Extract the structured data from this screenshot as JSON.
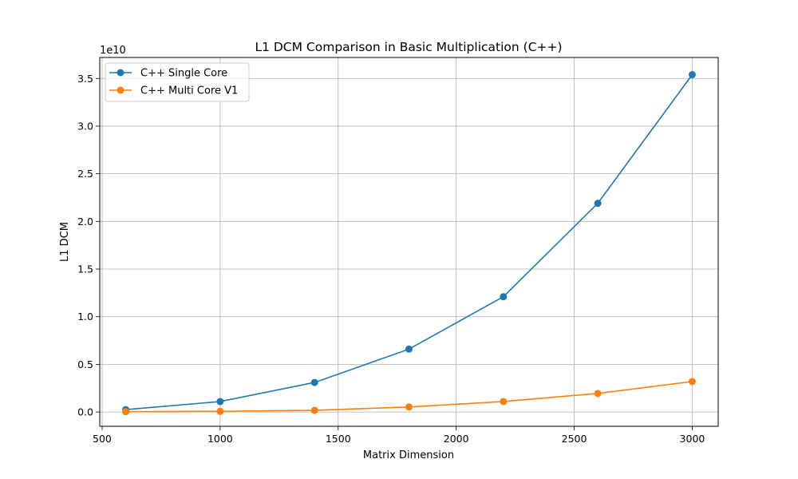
{
  "chart_data": {
    "type": "line",
    "title": "L1 DCM Comparison in Basic Multiplication (C++)",
    "xlabel": "Matrix Dimension",
    "ylabel": "L1 DCM",
    "y_offset_text": "1e10",
    "xlim": [
      490,
      3110
    ],
    "ylim": [
      -0.15,
      3.72
    ],
    "y_scale_factor": 10000000000,
    "x_ticks": [
      500,
      1000,
      1500,
      2000,
      2500,
      3000
    ],
    "x_tick_labels": [
      "500",
      "1000",
      "1500",
      "2000",
      "2500",
      "3000"
    ],
    "y_ticks": [
      0.0,
      0.5,
      1.0,
      1.5,
      2.0,
      2.5,
      3.0,
      3.5
    ],
    "y_tick_labels": [
      "0.0",
      "0.5",
      "1.0",
      "1.5",
      "2.0",
      "2.5",
      "3.0",
      "3.5"
    ],
    "grid": true,
    "legend_position": "upper-left",
    "x": [
      600,
      1000,
      1400,
      1800,
      2200,
      2600,
      3000
    ],
    "series": [
      {
        "name": "C++ Single Core",
        "color": "#1f77b4",
        "marker": "circle",
        "values": [
          0.025,
          0.11,
          0.31,
          0.66,
          1.21,
          2.19,
          3.54
        ]
      },
      {
        "name": "C++ Multi Core V1",
        "color": "#ff7f0e",
        "marker": "circle",
        "values": [
          0.003,
          0.007,
          0.018,
          0.053,
          0.11,
          0.195,
          0.32
        ]
      }
    ]
  }
}
